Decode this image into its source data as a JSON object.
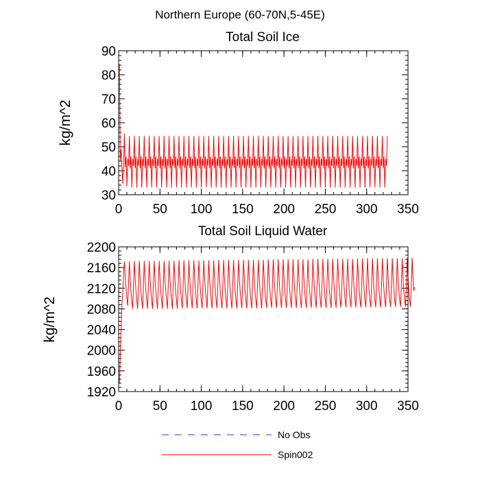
{
  "figure": {
    "title": "Northern Europe (60-70N,5-45E)"
  },
  "colors": {
    "spin": "#ff0000",
    "obs": "#3333cc"
  },
  "legend": [
    {
      "label": "No Obs",
      "style": "dashed",
      "color": "#3333cc"
    },
    {
      "label": "Spin002",
      "style": "solid",
      "color": "#ff0000"
    }
  ],
  "chart_data": [
    {
      "type": "line",
      "title": "Total Soil Ice",
      "xlabel": "",
      "ylabel": "kg/m^2",
      "xlim": [
        0,
        350
      ],
      "ylim": [
        30,
        90
      ],
      "xticks": [
        0,
        50,
        100,
        150,
        200,
        250,
        300,
        350
      ],
      "yticks": [
        30,
        40,
        50,
        60,
        70,
        80,
        90
      ],
      "grid": false,
      "series": [
        {
          "name": "Spin002",
          "color": "#ff0000",
          "x_start": 1,
          "x_step": 1,
          "values": [
            84.5,
            44,
            49,
            42,
            34.5,
            42,
            55.5,
            41.5,
            46,
            33.5,
            45,
            42,
            54.5,
            41,
            46,
            33,
            45,
            42,
            54.5,
            41,
            46,
            33,
            45,
            42,
            54.5,
            41,
            46,
            33,
            45,
            42,
            54.5,
            41,
            46,
            33,
            45,
            42,
            54.5,
            41,
            46,
            33,
            45,
            42,
            54.5,
            41,
            46,
            33,
            45,
            42,
            54.5,
            41,
            46,
            33,
            45,
            42,
            54.5,
            41,
            46,
            33,
            45,
            42,
            54.5,
            41,
            46,
            33,
            45,
            42,
            54.5,
            41,
            46,
            33,
            45,
            42,
            54.5,
            41,
            46,
            33,
            45,
            42,
            54.5,
            41,
            46,
            33,
            45,
            42,
            54.5,
            41,
            46,
            33,
            45,
            42,
            54.5,
            41,
            46,
            33,
            45,
            42,
            54.5,
            41,
            46,
            33,
            45,
            42,
            54.5,
            41,
            46,
            33,
            45,
            42,
            54.5,
            41,
            46,
            33,
            45,
            42,
            54.5,
            41,
            46,
            33,
            45,
            42,
            54.5,
            41,
            46,
            33,
            45,
            42,
            54.5,
            41,
            46,
            33,
            45,
            42,
            54.5,
            41,
            46,
            33,
            45,
            42,
            54.5,
            41,
            46,
            33,
            45,
            42,
            54.5,
            41,
            46,
            33,
            45,
            42,
            54.5,
            41,
            46,
            33,
            45,
            42,
            54.5,
            41,
            46,
            33,
            45,
            42,
            54.5,
            41,
            46,
            33,
            45,
            42,
            54.5,
            41,
            46,
            33,
            45,
            42,
            54.5,
            41,
            46,
            33,
            45,
            42,
            54.5,
            41,
            46,
            33,
            45,
            42,
            54.5,
            41,
            46,
            33,
            45,
            42,
            54.5,
            41,
            46,
            33,
            45,
            42,
            54.5,
            41,
            46,
            33,
            45,
            42,
            54.5,
            41,
            46,
            33,
            45,
            42,
            54.5,
            41,
            46,
            33,
            45,
            42,
            54.5,
            41,
            46,
            33,
            45,
            42,
            54.5,
            41,
            46,
            33,
            45,
            42,
            54.5,
            41,
            46,
            33,
            45,
            42,
            54.5,
            41,
            46,
            33,
            45,
            42,
            54.5,
            41,
            46,
            33,
            45,
            42,
            54.5,
            41,
            46,
            33,
            45,
            42,
            54.5,
            41,
            46,
            33,
            45,
            42,
            54.5,
            41,
            46,
            33,
            45,
            42,
            54.5,
            41,
            46,
            33,
            45,
            42,
            54.5,
            41,
            46,
            33,
            45,
            42,
            54.5,
            41,
            46,
            33,
            45,
            42,
            54.5,
            41,
            46,
            33,
            45,
            42,
            54.5,
            41,
            46,
            33,
            45,
            42,
            54.5,
            41,
            46,
            33,
            45,
            42,
            54.5,
            41,
            46,
            33,
            45,
            42,
            54.5,
            41,
            46,
            33,
            45,
            42,
            54.5,
            41,
            46,
            33,
            45,
            42,
            54.5,
            41,
            46,
            33,
            45,
            42,
            54.5
          ]
        }
      ]
    },
    {
      "type": "line",
      "title": "Total Soil Liquid Water",
      "xlabel": "",
      "ylabel": "kg/m^2",
      "xlim": [
        0,
        350
      ],
      "ylim": [
        1920,
        2200
      ],
      "xticks": [
        0,
        50,
        100,
        150,
        200,
        250,
        300,
        350
      ],
      "yticks": [
        1920,
        1960,
        2000,
        2040,
        2080,
        2120,
        2160,
        2200
      ],
      "grid": false,
      "series": [
        {
          "name": "Spin002",
          "color": "#ff0000",
          "x_start": 1,
          "x_step": 1,
          "values": [
            1935,
            1990,
            2040,
            2090,
            2110,
            2150,
            2172,
            2140,
            2120,
            2100,
            2086,
            2130,
            2172,
            2138,
            2112,
            2094,
            2080,
            2126,
            2173,
            2140,
            2114,
            2096,
            2080,
            2126,
            2173,
            2140,
            2114,
            2096,
            2080,
            2126,
            2173,
            2140,
            2114,
            2096,
            2080,
            2126,
            2173,
            2140,
            2114,
            2096,
            2080,
            2126,
            2173,
            2140,
            2114,
            2096,
            2080,
            2126,
            2173,
            2140,
            2114,
            2096,
            2080,
            2126,
            2173,
            2140,
            2114,
            2096,
            2080,
            2126,
            2173,
            2140,
            2114,
            2096,
            2080,
            2126,
            2173,
            2140,
            2114,
            2096,
            2080,
            2126,
            2174,
            2140,
            2114,
            2096,
            2081,
            2126,
            2174,
            2140,
            2114,
            2096,
            2081,
            2126,
            2174,
            2140,
            2114,
            2096,
            2081,
            2126,
            2174,
            2140,
            2114,
            2096,
            2081,
            2126,
            2174,
            2140,
            2114,
            2096,
            2081,
            2126,
            2174,
            2140,
            2114,
            2096,
            2081,
            2126,
            2174,
            2140,
            2114,
            2096,
            2081,
            2126,
            2174,
            2140,
            2114,
            2096,
            2081,
            2126,
            2175,
            2140,
            2114,
            2096,
            2081,
            2126,
            2175,
            2140,
            2114,
            2096,
            2081,
            2126,
            2175,
            2140,
            2114,
            2096,
            2081,
            2126,
            2175,
            2140,
            2114,
            2096,
            2081,
            2126,
            2175,
            2140,
            2114,
            2096,
            2081,
            2126,
            2175,
            2140,
            2114,
            2096,
            2081,
            2126,
            2175,
            2140,
            2114,
            2096,
            2081,
            2126,
            2175,
            2140,
            2114,
            2096,
            2081,
            2126,
            2175,
            2140,
            2114,
            2096,
            2081,
            2126,
            2175,
            2140,
            2114,
            2096,
            2082,
            2126,
            2176,
            2141,
            2115,
            2096,
            2082,
            2126,
            2176,
            2141,
            2115,
            2096,
            2082,
            2126,
            2176,
            2141,
            2115,
            2096,
            2082,
            2126,
            2176,
            2141,
            2115,
            2096,
            2082,
            2126,
            2176,
            2141,
            2115,
            2096,
            2082,
            2126,
            2176,
            2141,
            2115,
            2096,
            2082,
            2126,
            2176,
            2141,
            2115,
            2096,
            2082,
            2126,
            2176,
            2141,
            2115,
            2096,
            2082,
            2126,
            2176,
            2141,
            2115,
            2096,
            2082,
            2126,
            2177,
            2141,
            2115,
            2096,
            2082,
            2126,
            2177,
            2141,
            2115,
            2096,
            2082,
            2126,
            2177,
            2141,
            2115,
            2096,
            2082,
            2126,
            2177,
            2141,
            2115,
            2096,
            2082,
            2126,
            2177,
            2141,
            2115,
            2096,
            2082,
            2126,
            2177,
            2141,
            2115,
            2096,
            2083,
            2126,
            2177,
            2141,
            2115,
            2096,
            2083,
            2126,
            2177,
            2141,
            2115,
            2096,
            2083,
            2126,
            2177,
            2141,
            2115,
            2096,
            2083,
            2126,
            2178,
            2141,
            2115,
            2096,
            2083,
            2126,
            2178,
            2141,
            2115,
            2096,
            2083,
            2126,
            2178,
            2141,
            2115,
            2096,
            2083,
            2126,
            2178,
            2141,
            2115,
            2096,
            2083,
            2126,
            2178,
            2141,
            2115,
            2096,
            2083,
            2126,
            2178,
            2141,
            2115,
            2096,
            2083,
            2126,
            2178,
            2141,
            2115,
            2096,
            2084,
            2126,
            2178,
            2141,
            2115,
            2096,
            2084,
            2126,
            2178,
            2141,
            2115,
            2096,
            2084,
            2126,
            2178,
            2141,
            2115,
            2096,
            2084,
            2126,
            2178,
            2141,
            2115,
            2096,
            2084,
            2126,
            2179,
            2141,
            2115,
            2122
          ]
        }
      ]
    }
  ]
}
